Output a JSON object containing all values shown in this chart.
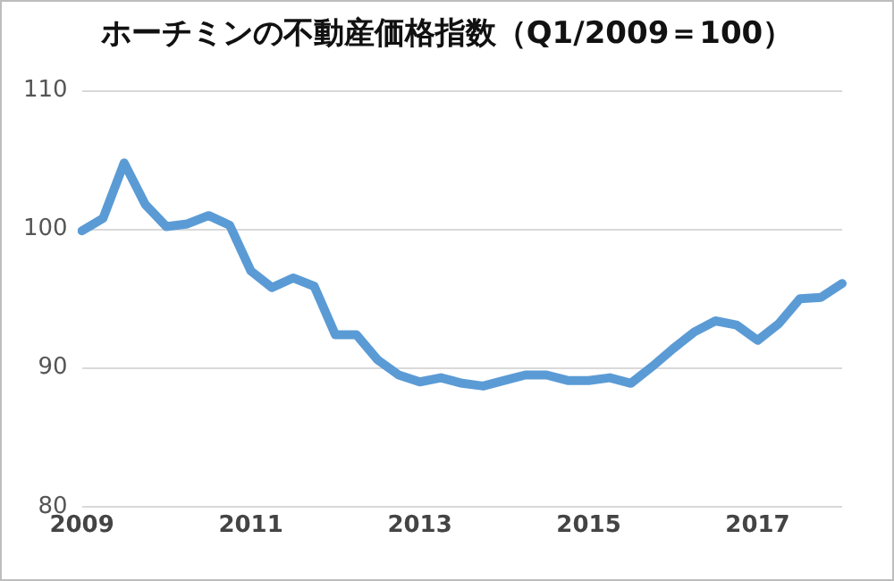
{
  "chart_data": {
    "type": "line",
    "title": "ホーチミンの不動産価格指数（Q1/2009＝100）",
    "categories": [
      "2009",
      null,
      null,
      null,
      null,
      null,
      null,
      null,
      "2011",
      null,
      null,
      null,
      null,
      null,
      null,
      null,
      "2013",
      null,
      null,
      null,
      null,
      null,
      null,
      null,
      "2015",
      null,
      null,
      null,
      null,
      null,
      null,
      null,
      "2017",
      null,
      null,
      null,
      null
    ],
    "series": [
      {
        "color": "#5b9bd5",
        "values": [
          99.9,
          100.8,
          104.8,
          101.8,
          100.2,
          100.4,
          101.0,
          100.3,
          97.0,
          95.8,
          96.5,
          95.9,
          92.4,
          92.4,
          90.6,
          89.5,
          89.0,
          89.3,
          88.9,
          88.7,
          89.1,
          89.5,
          89.5,
          89.1,
          89.1,
          89.3,
          88.9,
          90.1,
          91.4,
          92.6,
          93.4,
          93.1,
          92.0,
          93.2,
          95.0,
          95.1,
          96.1
        ]
      }
    ],
    "ylim": [
      80,
      110
    ],
    "yticks": [
      80,
      90,
      100,
      110
    ],
    "grid": "y",
    "legend": false,
    "marker": "none",
    "line_style": "solid"
  }
}
